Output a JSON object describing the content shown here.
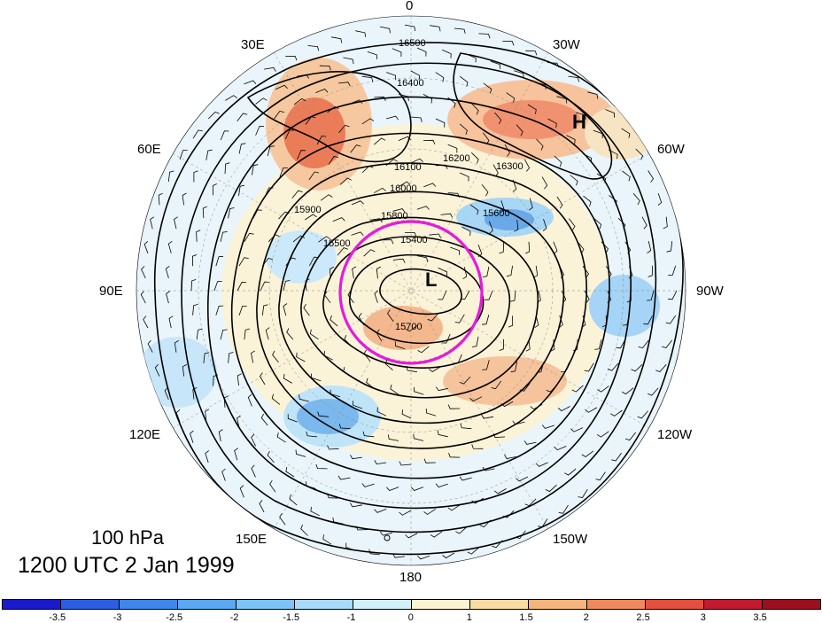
{
  "title": {
    "level": "100 hPa",
    "date": "1200 UTC 2 Jan 1999"
  },
  "longitude_labels": [
    "0",
    "30W",
    "60W",
    "90W",
    "120W",
    "150W",
    "180",
    "150E",
    "120E",
    "90E",
    "60E",
    "30E"
  ],
  "markers": {
    "high": "H",
    "low": "L"
  },
  "contour_labels": [
    "16500",
    "16400",
    "16300",
    "16200",
    "16100",
    "16000",
    "15900",
    "15800",
    "15700",
    "15600",
    "15500",
    "15400"
  ],
  "colorbar": {
    "ticks": [
      "-3.5",
      "-3",
      "-2.5",
      "-2",
      "-1.5",
      "-1",
      "0",
      "1",
      "1.5",
      "2",
      "2.5",
      "3",
      "3.5"
    ],
    "colors": [
      "#1a1acc",
      "#2b5ee0",
      "#3f86ea",
      "#5aa7f2",
      "#7cc4f7",
      "#a6dcfa",
      "#d2f0fb",
      "#fbf3d2",
      "#f8dca4",
      "#f6b57c",
      "#f08a5e",
      "#e4503f",
      "#c21a2e",
      "#9b0f1f"
    ]
  },
  "highlight_circle_color": "#e61adc"
}
